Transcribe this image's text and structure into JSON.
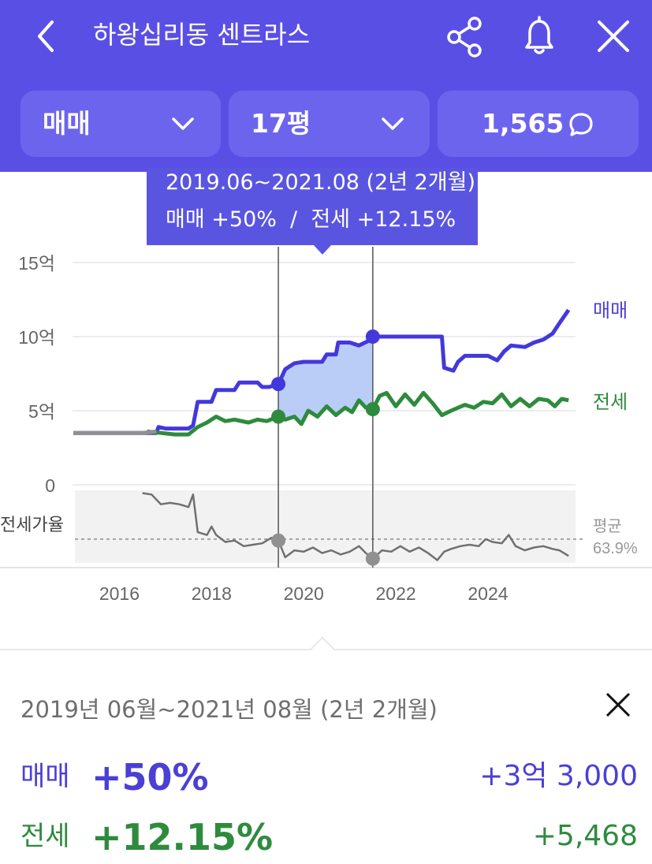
{
  "header": {
    "title": "하왕십리동 센트라스",
    "filters": {
      "deal_type": "매매",
      "size": "17평",
      "comment_count": "1,565"
    }
  },
  "tooltip": {
    "period": "2019.06~2021.08 (2년 2개월)",
    "summary": "매매 +50%  /  전세 +12.15%"
  },
  "chart_data": {
    "type": "line",
    "x_labels": [
      "2016",
      "2018",
      "2020",
      "2022",
      "2024"
    ],
    "y_labels": [
      "15억",
      "10억",
      "5억",
      "0"
    ],
    "ylim": [
      0,
      15
    ],
    "xlim": [
      2015.0,
      2025.9
    ],
    "series": [
      {
        "name": "매매",
        "color": "#4338dc",
        "points": [
          [
            2015.0,
            3.5
          ],
          [
            2016.0,
            3.5
          ],
          [
            2016.8,
            3.5
          ],
          [
            2016.85,
            3.9
          ],
          [
            2017.0,
            3.8
          ],
          [
            2017.5,
            3.8
          ],
          [
            2017.6,
            4.0
          ],
          [
            2017.7,
            5.6
          ],
          [
            2018.0,
            5.6
          ],
          [
            2018.1,
            6.4
          ],
          [
            2018.5,
            6.4
          ],
          [
            2018.6,
            6.9
          ],
          [
            2019.0,
            6.9
          ],
          [
            2019.1,
            6.6
          ],
          [
            2019.25,
            6.6
          ],
          [
            2019.45,
            6.8
          ],
          [
            2019.6,
            7.8
          ],
          [
            2019.8,
            8.2
          ],
          [
            2020.0,
            8.3
          ],
          [
            2020.4,
            8.3
          ],
          [
            2020.5,
            8.8
          ],
          [
            2020.7,
            8.8
          ],
          [
            2020.75,
            9.6
          ],
          [
            2021.0,
            9.6
          ],
          [
            2021.2,
            9.4
          ],
          [
            2021.4,
            9.7
          ],
          [
            2021.5,
            10.0
          ],
          [
            2022.0,
            10.0
          ],
          [
            2022.5,
            10.0
          ],
          [
            2023.0,
            10.0
          ],
          [
            2023.05,
            7.9
          ],
          [
            2023.25,
            7.7
          ],
          [
            2023.35,
            8.3
          ],
          [
            2023.5,
            8.7
          ],
          [
            2024.0,
            8.7
          ],
          [
            2024.2,
            8.4
          ],
          [
            2024.35,
            9.0
          ],
          [
            2024.5,
            9.4
          ],
          [
            2024.8,
            9.3
          ],
          [
            2025.0,
            9.6
          ],
          [
            2025.2,
            9.8
          ],
          [
            2025.4,
            10.2
          ],
          [
            2025.55,
            10.9
          ],
          [
            2025.75,
            11.8
          ]
        ]
      },
      {
        "name": "전세",
        "color": "#2e8b3e",
        "points": [
          [
            2016.6,
            3.6
          ],
          [
            2016.9,
            3.5
          ],
          [
            2017.2,
            3.4
          ],
          [
            2017.5,
            3.4
          ],
          [
            2017.7,
            3.9
          ],
          [
            2017.9,
            4.2
          ],
          [
            2018.1,
            4.6
          ],
          [
            2018.3,
            4.3
          ],
          [
            2018.5,
            4.4
          ],
          [
            2018.8,
            4.2
          ],
          [
            2019.0,
            4.4
          ],
          [
            2019.2,
            4.3
          ],
          [
            2019.45,
            4.6
          ],
          [
            2019.6,
            4.4
          ],
          [
            2019.8,
            4.6
          ],
          [
            2019.95,
            4.1
          ],
          [
            2020.1,
            5.0
          ],
          [
            2020.3,
            4.6
          ],
          [
            2020.5,
            5.3
          ],
          [
            2020.7,
            4.7
          ],
          [
            2020.9,
            5.2
          ],
          [
            2021.05,
            4.9
          ],
          [
            2021.2,
            5.7
          ],
          [
            2021.35,
            5.2
          ],
          [
            2021.5,
            5.1
          ],
          [
            2021.65,
            6.0
          ],
          [
            2021.8,
            6.2
          ],
          [
            2022.0,
            5.3
          ],
          [
            2022.2,
            6.1
          ],
          [
            2022.4,
            5.4
          ],
          [
            2022.6,
            6.2
          ],
          [
            2022.8,
            5.5
          ],
          [
            2023.0,
            4.7
          ],
          [
            2023.2,
            5.0
          ],
          [
            2023.5,
            5.4
          ],
          [
            2023.7,
            5.2
          ],
          [
            2023.9,
            5.6
          ],
          [
            2024.1,
            5.5
          ],
          [
            2024.3,
            6.1
          ],
          [
            2024.5,
            5.3
          ],
          [
            2024.7,
            5.8
          ],
          [
            2024.9,
            5.3
          ],
          [
            2025.1,
            5.8
          ],
          [
            2025.3,
            5.7
          ],
          [
            2025.45,
            5.3
          ],
          [
            2025.6,
            5.8
          ],
          [
            2025.75,
            5.7
          ]
        ]
      },
      {
        "name": "before",
        "color": "#909090",
        "points": [
          [
            2015.0,
            3.5
          ],
          [
            2016.0,
            3.5
          ],
          [
            2016.5,
            3.5
          ],
          [
            2016.8,
            3.6
          ]
        ]
      }
    ],
    "ratio_label": "전세가율",
    "ratio_avg_label": "평균",
    "ratio_avg_value": "63.9%",
    "ratio_series": {
      "name": "전세가율",
      "color": "#707070",
      "points": [
        [
          2016.5,
          98
        ],
        [
          2016.7,
          97
        ],
        [
          2016.9,
          90
        ],
        [
          2017.1,
          91
        ],
        [
          2017.3,
          90
        ],
        [
          2017.5,
          88
        ],
        [
          2017.6,
          97
        ],
        [
          2017.7,
          70
        ],
        [
          2017.9,
          68
        ],
        [
          2018.0,
          74
        ],
        [
          2018.1,
          68
        ],
        [
          2018.3,
          63
        ],
        [
          2018.5,
          64
        ],
        [
          2018.7,
          60
        ],
        [
          2018.9,
          61
        ],
        [
          2019.1,
          62
        ],
        [
          2019.3,
          66
        ],
        [
          2019.45,
          64
        ],
        [
          2019.6,
          52
        ],
        [
          2019.8,
          57
        ],
        [
          2020.0,
          56
        ],
        [
          2020.2,
          59
        ],
        [
          2020.4,
          55
        ],
        [
          2020.6,
          57
        ],
        [
          2020.8,
          54
        ],
        [
          2021.0,
          56
        ],
        [
          2021.2,
          60
        ],
        [
          2021.35,
          55
        ],
        [
          2021.5,
          51
        ],
        [
          2021.7,
          57
        ],
        [
          2021.9,
          56
        ],
        [
          2022.1,
          60
        ],
        [
          2022.3,
          56
        ],
        [
          2022.5,
          59
        ],
        [
          2022.7,
          55
        ],
        [
          2022.9,
          50
        ],
        [
          2023.05,
          56
        ],
        [
          2023.2,
          58
        ],
        [
          2023.4,
          60
        ],
        [
          2023.6,
          61
        ],
        [
          2023.8,
          60
        ],
        [
          2023.95,
          65
        ],
        [
          2024.1,
          63
        ],
        [
          2024.3,
          62
        ],
        [
          2024.45,
          68
        ],
        [
          2024.6,
          60
        ],
        [
          2024.8,
          57
        ],
        [
          2025.0,
          59
        ],
        [
          2025.2,
          60
        ],
        [
          2025.4,
          58
        ],
        [
          2025.55,
          57
        ],
        [
          2025.75,
          53
        ]
      ]
    },
    "selection": {
      "start": 2019.45,
      "end": 2021.5,
      "start_labels": [
        "2019.06"
      ],
      "end_labels": [
        "2021.08"
      ]
    },
    "series_end_labels": [
      "매매",
      "전세"
    ],
    "grid": true
  },
  "detail": {
    "period": "2019년 06월~2021년 08월 (2년 2개월)",
    "sale": {
      "label": "매매",
      "pct": "+50%",
      "amount": "+3억 3,000"
    },
    "jeonse": {
      "label": "전세",
      "pct": "+12.15%",
      "amount": "+5,468"
    }
  }
}
